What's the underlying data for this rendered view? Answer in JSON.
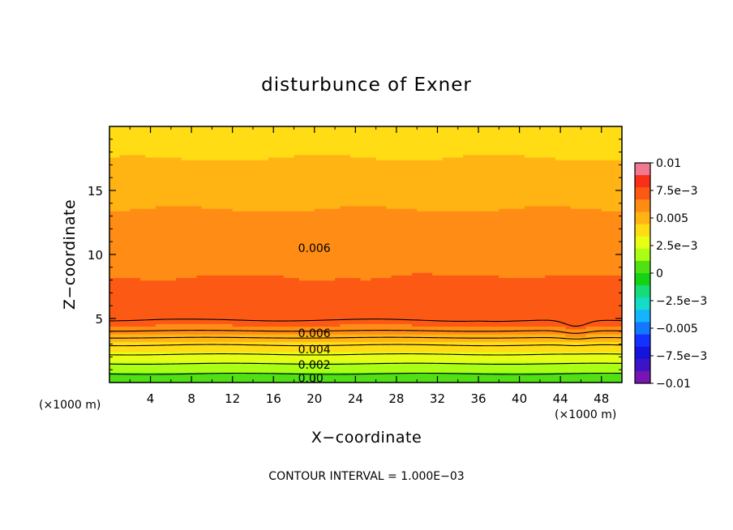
{
  "chart_data": {
    "type": "heatmap",
    "title": "disturbunce of Exner",
    "xlabel": "X−coordinate",
    "ylabel": "Z−coordinate",
    "x_unit_label": "(×1000 m)",
    "y_unit_label": "(×1000 m)",
    "xlim": [
      0,
      50
    ],
    "ylim": [
      0,
      20
    ],
    "x_ticks": [
      4,
      8,
      12,
      16,
      20,
      24,
      28,
      32,
      36,
      40,
      44,
      48
    ],
    "x_tick_labels": [
      "4",
      "8",
      "12",
      "16",
      "20",
      "24",
      "28",
      "32",
      "36",
      "40",
      "44",
      "48"
    ],
    "y_ticks": [
      5,
      10,
      15
    ],
    "y_tick_labels": [
      "5",
      "10",
      "15"
    ],
    "footer": "CONTOUR INTERVAL = 1.000E−03",
    "contour_interval": 0.001,
    "contour_labels": [
      {
        "text": "0.006",
        "x": 18.4,
        "z": 10.5
      },
      {
        "text": "0.006",
        "x": 18.4,
        "z": 3.85
      },
      {
        "text": "0.004",
        "x": 18.4,
        "z": 2.6
      },
      {
        "text": "0.002",
        "x": 18.4,
        "z": 1.4
      },
      {
        "text": "0.00",
        "x": 18.4,
        "z": 0.35
      }
    ],
    "profile_z": [
      0.2,
      0.6,
      1.0,
      1.4,
      1.8,
      2.2,
      2.6,
      3.0,
      3.4,
      3.8,
      4.4,
      5.0,
      5.6,
      6.2,
      6.8,
      7.4,
      8.5,
      10.0,
      11.5,
      13.0,
      14.5,
      16.0,
      17.0,
      18.0,
      19.0,
      19.8
    ],
    "profile_value": [
      0.0002,
      0.0009,
      0.0014,
      0.0019,
      0.0025,
      0.003,
      0.0036,
      0.0041,
      0.0048,
      0.0056,
      0.0066,
      0.0071,
      0.0073,
      0.0074,
      0.0071,
      0.0069,
      0.0066,
      0.0064,
      0.006,
      0.0057,
      0.0053,
      0.0049,
      0.0046,
      0.0043,
      0.0041,
      0.0043
    ],
    "colorbar": {
      "min": -0.01,
      "max": 0.01,
      "labels": [
        "0.01",
        "7.5e−3",
        "0.005",
        "2.5e−3",
        "0",
        "−2.5e−3",
        "−0.005",
        "−7.5e−3",
        "−0.01"
      ],
      "label_values": [
        0.01,
        0.0075,
        0.005,
        0.0025,
        0,
        -0.0025,
        -0.005,
        -0.0075,
        -0.01
      ],
      "colors": [
        "#f07890",
        "#f83018",
        "#fc5a14",
        "#ff8c14",
        "#ffb414",
        "#ffdc14",
        "#e6ff14",
        "#aaff14",
        "#50e014",
        "#14d214",
        "#14dc78",
        "#14dcc8",
        "#14b4ff",
        "#1478ff",
        "#1432ff",
        "#1414dc",
        "#3c14c8",
        "#7814b4"
      ]
    }
  }
}
